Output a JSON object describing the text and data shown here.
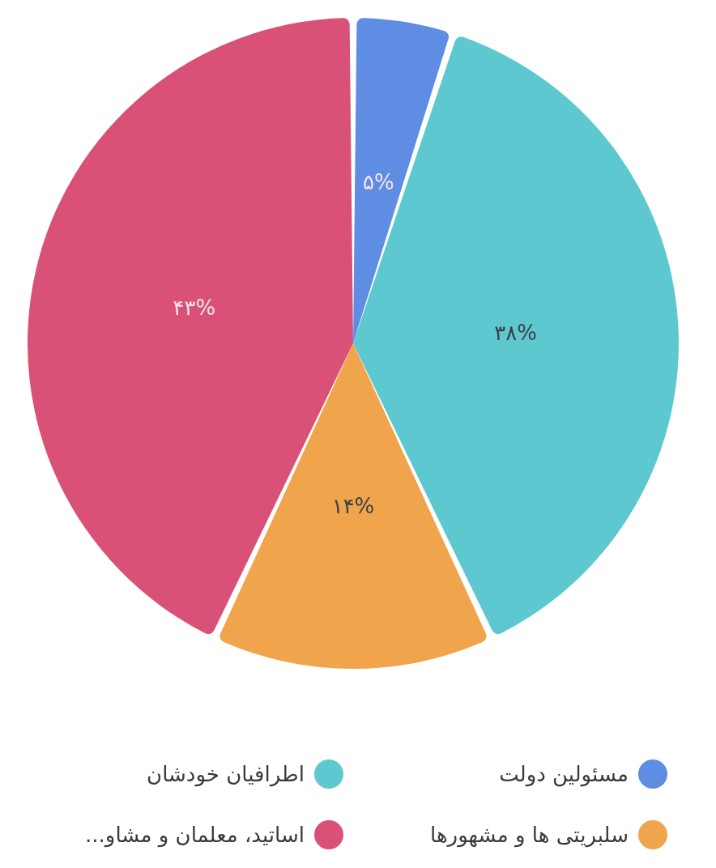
{
  "chart_data": {
    "type": "pie",
    "categories": [
      "مسئولین دولت",
      "اطرافیان خودشان",
      "سلبریتی ها و مشهورها",
      "اساتید، معلمان و مشاو..."
    ],
    "values": [
      5,
      38,
      14,
      43
    ],
    "colors": [
      "#5f8de3",
      "#5ec8d0",
      "#f0a54d",
      "#d95177"
    ],
    "value_labels": [
      "۵%",
      "۳۸%",
      "۱۴%",
      "۴۳%"
    ],
    "legend": "bottom"
  }
}
